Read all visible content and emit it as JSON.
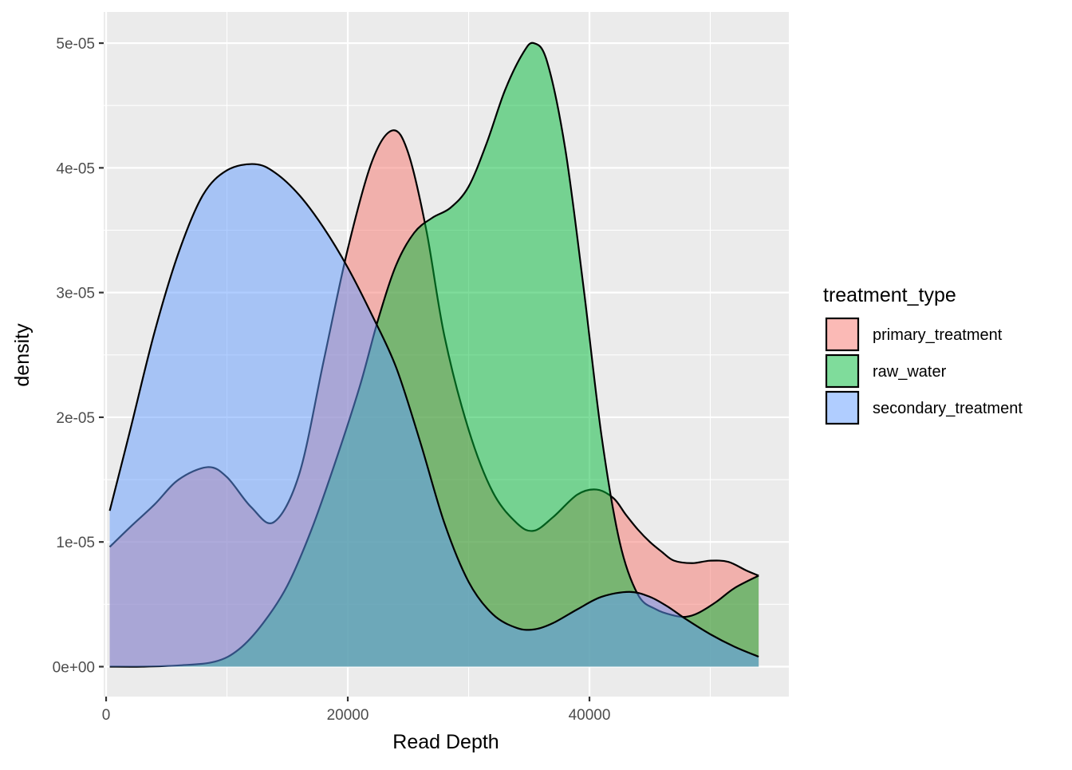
{
  "chart_data": {
    "type": "area",
    "xlabel": "Read Depth",
    "ylabel": "density",
    "xlim": [
      -200,
      56500
    ],
    "ylim": [
      -2.4e-06,
      5.25e-05
    ],
    "x_ticks": [
      0,
      20000,
      40000
    ],
    "x_tick_labels": [
      "0",
      "20000",
      "40000"
    ],
    "x_minor_ticks": [
      10000,
      30000,
      50000
    ],
    "y_ticks": [
      0,
      1e-05,
      2e-05,
      3e-05,
      4e-05,
      5e-05
    ],
    "y_tick_labels": [
      "0e+00",
      "1e-05",
      "2e-05",
      "3e-05",
      "4e-05",
      "5e-05"
    ],
    "y_minor_ticks": [
      5e-06,
      1.5e-05,
      2.5e-05,
      3.5e-05,
      4.5e-05
    ],
    "grid": true,
    "legend": {
      "title": "treatment_type",
      "position": "right",
      "entries": [
        "primary_treatment",
        "raw_water",
        "secondary_treatment"
      ]
    },
    "colors": {
      "primary_treatment": "#F8766D",
      "raw_water": "#00BA38",
      "secondary_treatment": "#619CFF",
      "panel_background": "#EBEBEB",
      "grid": "#FFFFFF",
      "outline": "#000000"
    },
    "fill_alpha": 0.5,
    "series": [
      {
        "name": "primary_treatment",
        "x": [
          300,
          2000,
          4000,
          6000,
          8400,
          10000,
          12000,
          13900,
          16000,
          18000,
          20000,
          22000,
          23700,
          25000,
          26500,
          28000,
          30000,
          32000,
          34000,
          35400,
          37000,
          39000,
          40600,
          42000,
          43000,
          44000,
          45000,
          46000,
          47000,
          48500,
          50000,
          51500,
          53000,
          54000
        ],
        "y": [
          9.6e-06,
          1.12e-05,
          1.3e-05,
          1.5e-05,
          1.6e-05,
          1.52e-05,
          1.28e-05,
          1.16e-05,
          1.55e-05,
          2.45e-05,
          3.35e-05,
          4.05e-05,
          4.3e-05,
          4.12e-05,
          3.5e-05,
          2.65e-05,
          1.9e-05,
          1.4e-05,
          1.15e-05,
          1.09e-05,
          1.2e-05,
          1.38e-05,
          1.42e-05,
          1.35e-05,
          1.22e-05,
          1.1e-05,
          1e-05,
          9.2e-06,
          8.5e-06,
          8.3e-06,
          8.5e-06,
          8.4e-06,
          7.7e-06,
          7.3e-06
        ]
      },
      {
        "name": "raw_water",
        "x": [
          300,
          3000,
          6000,
          9000,
          11000,
          13000,
          15000,
          17000,
          19000,
          21000,
          22500,
          24000,
          25500,
          27000,
          28500,
          30000,
          31500,
          33000,
          34500,
          35400,
          36500,
          38000,
          39500,
          41000,
          42500,
          44000,
          45500,
          47000,
          48000,
          49000,
          50500,
          52000,
          54000
        ],
        "y": [
          0,
          0,
          1e-07,
          4e-07,
          1.4e-06,
          3.5e-06,
          6.5e-06,
          1.1e-05,
          1.65e-05,
          2.25e-05,
          2.78e-05,
          3.22e-05,
          3.48e-05,
          3.6e-05,
          3.68e-05,
          3.85e-05,
          4.2e-05,
          4.62e-05,
          4.92e-05,
          5e-05,
          4.85e-05,
          4.15e-05,
          3.05e-05,
          1.85e-05,
          1e-05,
          5.8e-06,
          4.6e-06,
          4.1e-06,
          4e-06,
          4.3e-06,
          5.2e-06,
          6.3e-06,
          7.3e-06
        ]
      },
      {
        "name": "secondary_treatment",
        "x": [
          300,
          2000,
          4000,
          6000,
          8000,
          10000,
          12300,
          14000,
          16000,
          18000,
          20000,
          22000,
          24000,
          26000,
          28000,
          30000,
          32000,
          34000,
          35500,
          37000,
          39000,
          41000,
          43300,
          45000,
          46500,
          48000,
          50000,
          52000,
          54000
        ],
        "y": [
          1.25e-05,
          1.9e-05,
          2.68e-05,
          3.32e-05,
          3.78e-05,
          3.98e-05,
          4.03e-05,
          3.96e-05,
          3.78e-05,
          3.52e-05,
          3.2e-05,
          2.82e-05,
          2.4e-05,
          1.8e-05,
          1.15e-05,
          6.8e-06,
          4.2e-06,
          3.1e-06,
          3e-06,
          3.5e-06,
          4.6e-06,
          5.6e-06,
          6e-06,
          5.6e-06,
          4.8e-06,
          3.8e-06,
          2.6e-06,
          1.6e-06,
          8e-07
        ]
      }
    ]
  }
}
